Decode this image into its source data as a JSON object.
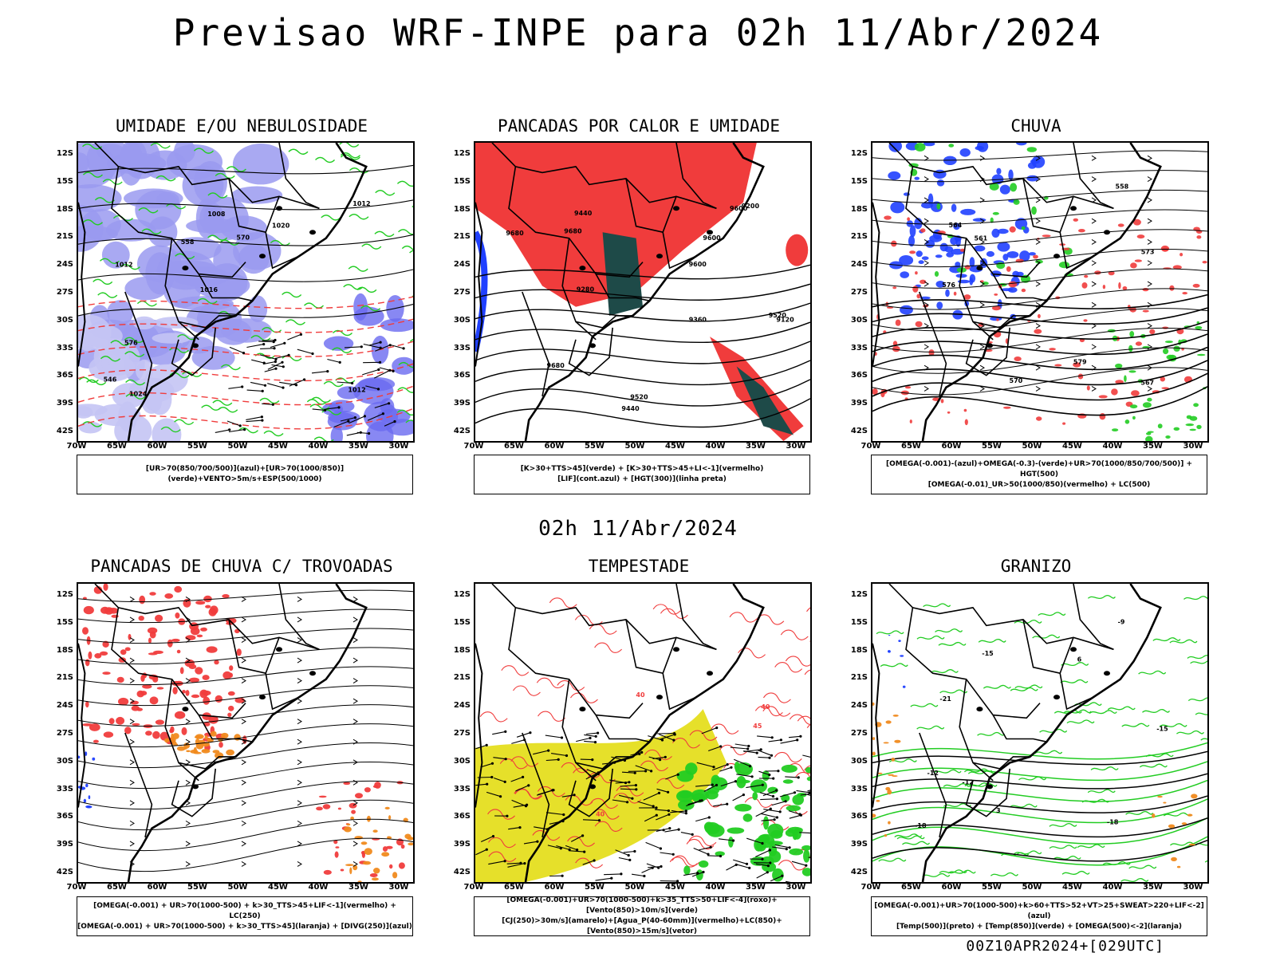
{
  "main_title": "Previsao WRF-INPE  para 02h 11/Abr/2024",
  "mid_title": "02h 11/Abr/2024",
  "footer": "00Z10APR2024+[029UTC]",
  "lat_labels": [
    "12S",
    "15S",
    "18S",
    "21S",
    "24S",
    "27S",
    "30S",
    "33S",
    "36S",
    "39S",
    "42S"
  ],
  "lon_labels": [
    "70W",
    "65W",
    "60W",
    "55W",
    "50W",
    "45W",
    "40W",
    "35W",
    "30W"
  ],
  "panels": [
    {
      "title": "UMIDADE E/OU NEBULOSIDADE",
      "legend": [
        "[UR>70(850/700/500)](azul)+[UR>70(1000/850)](verde)+VENTO>5m/s+ESP(500/1000)"
      ],
      "contour_labels": [
        "1012",
        "1012",
        "1012",
        "1016",
        "1020",
        "1024",
        "1008",
        "570",
        "576",
        "558",
        "546"
      ]
    },
    {
      "title": "PANCADAS POR CALOR E UMIDADE",
      "legend": [
        "[K>30+TTS>45](verde) + [K>30+TTS>45+LI<-1](vermelho)",
        "[LIF](cont.azul) + [HGT(300)](linha preta)"
      ],
      "contour_labels": [
        "9680",
        "9680",
        "9600",
        "9520",
        "9600",
        "9440",
        "9360",
        "9280",
        "9200",
        "9120",
        "9520",
        "9440",
        "9600",
        "9680"
      ]
    },
    {
      "title": "CHUVA",
      "legend": [
        "[OMEGA(-0.001)-(azul)+OMEGA(-0.3)-(verde)+UR>70(1000/850/700/500)] + HGT(500)",
        "[OMEGA(-0.01)_UR>50(1000/850)(vermelho) + LC(500)"
      ],
      "contour_labels": [
        "579",
        "576",
        "573",
        "570",
        "567",
        "564",
        "561",
        "558"
      ]
    },
    {
      "title": "PANCADAS DE CHUVA C/ TROVOADAS",
      "legend": [
        "[OMEGA(-0.001) + UR>70(1000-500) + k>30_TTS>45+LIF<-1](vermelho) + LC(250)",
        "[OMEGA(-0.001) + UR>70(1000-500) + k>30_TTS>45](laranja) + [DIVG(250)](azul)"
      ],
      "contour_labels": []
    },
    {
      "title": "TEMPESTADE",
      "legend": [
        "[OMEGA(-0.001)+UR>70(1000-500)+k>35_TTS>50+LIF<-4](roxo)+[Vento(850)>10m/s](verde)",
        "[CJ(250)>30m/s](amarelo)+[Agua_P(40-60mm)](vermelho)+LC(850)+[Vento(850)>15m/s](vetor)"
      ],
      "contour_labels": [
        "40",
        "40",
        "45",
        "40"
      ]
    },
    {
      "title": "GRANIZO",
      "legend": [
        "[OMEGA(-0.001)+UR>70(1000-500)+k>60+TTS>52+VT>25+SWEAT>220+LIF<-2](azul)",
        "[Temp(500)](preto) + [Temp(850)](verde) + [OMEGA(500)<-2](laranja)"
      ],
      "contour_labels": [
        "-9",
        "-12",
        "-15",
        "-18",
        "-21",
        "-12",
        "-15",
        "-18",
        "3",
        "6"
      ]
    }
  ],
  "colors": {
    "blue_humidity": "#9a9af0",
    "green": "#22cc22",
    "red": "#f03c3c",
    "dark_teal": "#1e4a48",
    "yellow": "#e6e02a",
    "orange": "#f08a1e",
    "blue": "#2040ff"
  }
}
